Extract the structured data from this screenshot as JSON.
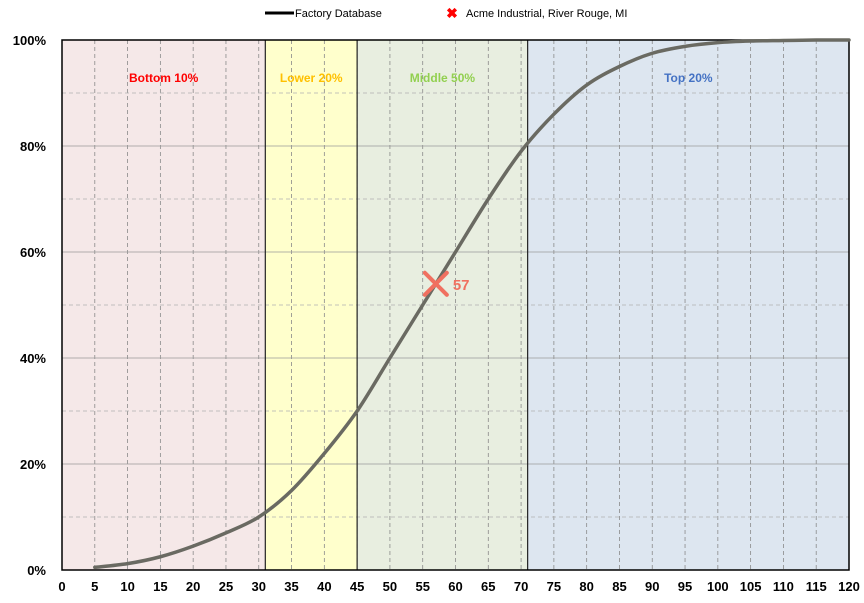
{
  "chart_data": {
    "type": "line",
    "x_ticks": [
      0,
      5,
      10,
      15,
      20,
      25,
      30,
      35,
      40,
      45,
      50,
      55,
      60,
      65,
      70,
      75,
      80,
      85,
      90,
      95,
      100,
      105,
      110,
      115,
      120
    ],
    "xlim": [
      0,
      120
    ],
    "y_ticks": [
      0,
      0.2,
      0.4,
      0.6,
      0.8,
      1.0
    ],
    "y_tick_labels": [
      "0%",
      "20%",
      "40%",
      "60%",
      "80%",
      "100%"
    ],
    "ylim": [
      0,
      1
    ],
    "grid": true,
    "legend": {
      "placement": "top",
      "entries": [
        "Factory Database",
        "Acme Industrial, River Rouge, MI"
      ]
    },
    "bands": [
      {
        "label": "Bottom 10%",
        "x_start": 0,
        "x_end": 31,
        "fill": "#f5e8e8",
        "label_color": "#ff0000"
      },
      {
        "label": "Lower 20%",
        "x_start": 31,
        "x_end": 45,
        "fill": "#ffffcc",
        "label_color": "#ffc000"
      },
      {
        "label": "Middle 50%",
        "x_start": 45,
        "x_end": 71,
        "fill": "#e8eee0",
        "label_color": "#92d050"
      },
      {
        "label": "Top 20%",
        "x_start": 71,
        "x_end": 120,
        "fill": "#dde6f0",
        "label_color": "#4472c4"
      }
    ],
    "series": [
      {
        "name": "Factory Database",
        "color": "#6a6a62",
        "x": [
          5,
          10,
          15,
          20,
          25,
          30,
          35,
          40,
          45,
          50,
          55,
          60,
          65,
          70,
          75,
          80,
          85,
          90,
          95,
          100,
          105,
          110,
          115,
          120
        ],
        "y": [
          0.005,
          0.012,
          0.025,
          0.045,
          0.07,
          0.1,
          0.15,
          0.22,
          0.3,
          0.4,
          0.5,
          0.6,
          0.7,
          0.79,
          0.86,
          0.915,
          0.95,
          0.975,
          0.988,
          0.995,
          0.998,
          0.999,
          1.0,
          1.0
        ]
      },
      {
        "name": "Acme Industrial, River Rouge, MI",
        "marker": "x",
        "color": "#f07060",
        "x": 57,
        "y": 0.54,
        "label": "57"
      }
    ]
  }
}
